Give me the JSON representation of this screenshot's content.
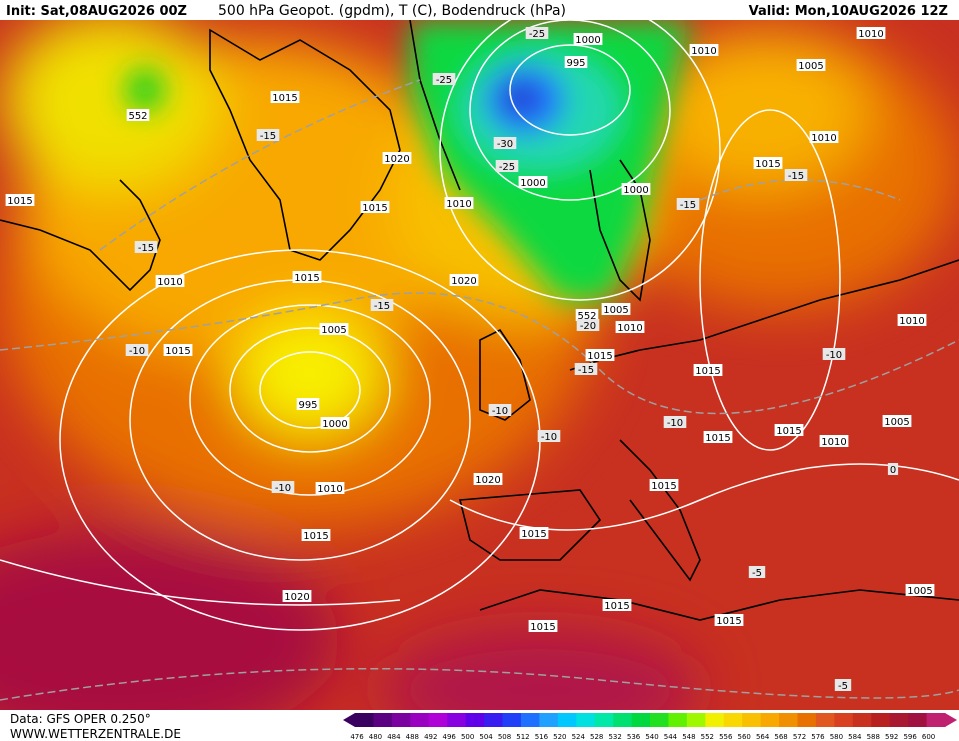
{
  "header": {
    "init": "Init: Sat,08AUG2026 00Z",
    "title": "500 hPa Geopot. (gpdm), T (C), Bodendruck (hPa)",
    "valid": "Valid: Mon,10AUG2026 12Z"
  },
  "footer": {
    "source": "Data: GFS OPER 0.250°",
    "site": "WWW.WETTERZENTRALE.DE"
  },
  "legend": {
    "values": [
      476,
      480,
      484,
      488,
      492,
      496,
      500,
      504,
      508,
      512,
      516,
      520,
      524,
      528,
      532,
      536,
      540,
      544,
      548,
      552,
      556,
      560,
      564,
      568,
      572,
      576,
      580,
      584,
      588,
      592,
      596,
      600
    ],
    "colors": [
      "#3a0060",
      "#5a0080",
      "#7a00a0",
      "#9a00c0",
      "#b000d8",
      "#8800e0",
      "#6000e8",
      "#3a1cf0",
      "#2040f8",
      "#2070ff",
      "#20a0ff",
      "#00c8ff",
      "#00e0e0",
      "#00e8a8",
      "#00e070",
      "#00d840",
      "#20e020",
      "#60f000",
      "#a0f800",
      "#f0f000",
      "#f8d800",
      "#f8c000",
      "#f8a800",
      "#f09000",
      "#e87000",
      "#e05820",
      "#d84020",
      "#c83020",
      "#b82020",
      "#a81830",
      "#a01040",
      "#c02070"
    ]
  },
  "isobar_labels": [
    1015,
    1015,
    1015,
    1015,
    1015,
    1015,
    1015,
    1015,
    1015,
    1015,
    1015,
    1015,
    1015,
    1015,
    1015,
    1015,
    1010,
    1010,
    1010,
    1010,
    1010,
    1010,
    1010,
    1010,
    1010,
    1005,
    1005,
    1005,
    1005,
    1005,
    1000,
    1000,
    1000,
    1000,
    995,
    995,
    1020,
    1020,
    1020,
    1020,
    552,
    552
  ],
  "temperature_labels": [
    -25,
    -25,
    -25,
    -30,
    -15,
    -15,
    -15,
    -15,
    -15,
    -15,
    -10,
    -10,
    -10,
    -10,
    -10,
    -10,
    -20,
    -5,
    -5,
    0
  ]
}
